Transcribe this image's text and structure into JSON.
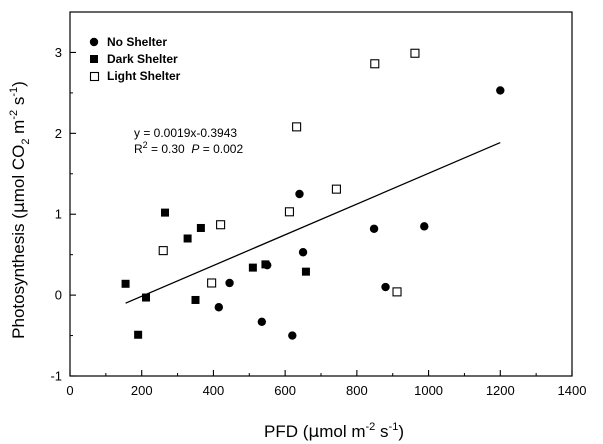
{
  "chart_data": {
    "type": "scatter",
    "xlabel": {
      "pre": "PFD (",
      "mu": "µ",
      "mid": "mol m",
      "sup1": "-2",
      "gap": " s",
      "sup2": "-1",
      "post": ")"
    },
    "ylabel": {
      "pre": "Photosynthesis (",
      "mu": "µ",
      "mid": "mol CO",
      "sub": "2",
      "gap": " m",
      "sup1": "-2",
      "gap2": " s",
      "sup2": "-1",
      "post": ")"
    },
    "xlim": [
      0,
      1400
    ],
    "ylim": [
      -1,
      3.5
    ],
    "x_ticks": [
      "0",
      "200",
      "400",
      "600",
      "800",
      "1000",
      "1200",
      "1400"
    ],
    "y_ticks": [
      "-1",
      "0",
      "1",
      "2",
      "3"
    ],
    "legend_position": "top-left",
    "series": [
      {
        "name": "No Shelter",
        "marker": "filled-circle",
        "color": "#000000",
        "points": [
          {
            "x": 415,
            "y": -0.15
          },
          {
            "x": 445,
            "y": 0.15
          },
          {
            "x": 535,
            "y": -0.33
          },
          {
            "x": 550,
            "y": 0.37
          },
          {
            "x": 620,
            "y": -0.5
          },
          {
            "x": 640,
            "y": 1.25
          },
          {
            "x": 650,
            "y": 0.53
          },
          {
            "x": 848,
            "y": 0.82
          },
          {
            "x": 880,
            "y": 0.1
          },
          {
            "x": 988,
            "y": 0.85
          },
          {
            "x": 1200,
            "y": 2.53
          }
        ]
      },
      {
        "name": "Dark Shelter",
        "marker": "filled-square",
        "color": "#000000",
        "points": [
          {
            "x": 155,
            "y": 0.14
          },
          {
            "x": 190,
            "y": -0.49
          },
          {
            "x": 212,
            "y": -0.03
          },
          {
            "x": 265,
            "y": 1.02
          },
          {
            "x": 328,
            "y": 0.7
          },
          {
            "x": 350,
            "y": -0.06
          },
          {
            "x": 365,
            "y": 0.83
          },
          {
            "x": 510,
            "y": 0.34
          },
          {
            "x": 545,
            "y": 0.38
          },
          {
            "x": 658,
            "y": 0.29
          }
        ]
      },
      {
        "name": "Light Shelter",
        "marker": "open-square",
        "color": "#000000",
        "points": [
          {
            "x": 260,
            "y": 0.55
          },
          {
            "x": 395,
            "y": 0.15
          },
          {
            "x": 420,
            "y": 0.87
          },
          {
            "x": 612,
            "y": 1.03
          },
          {
            "x": 632,
            "y": 2.08
          },
          {
            "x": 743,
            "y": 1.31
          },
          {
            "x": 850,
            "y": 2.86
          },
          {
            "x": 912,
            "y": 0.04
          },
          {
            "x": 962,
            "y": 2.99
          }
        ]
      }
    ],
    "regression": {
      "slope": 0.0019,
      "intercept": -0.3943,
      "x_range": [
        155,
        1200
      ]
    },
    "annotation": {
      "equation": "y = 0.0019x-0.3943",
      "r_label": "R",
      "r_sup": "2",
      "r_value": " = 0.30  ",
      "p_label": "P",
      "p_value": " = 0.002"
    }
  }
}
